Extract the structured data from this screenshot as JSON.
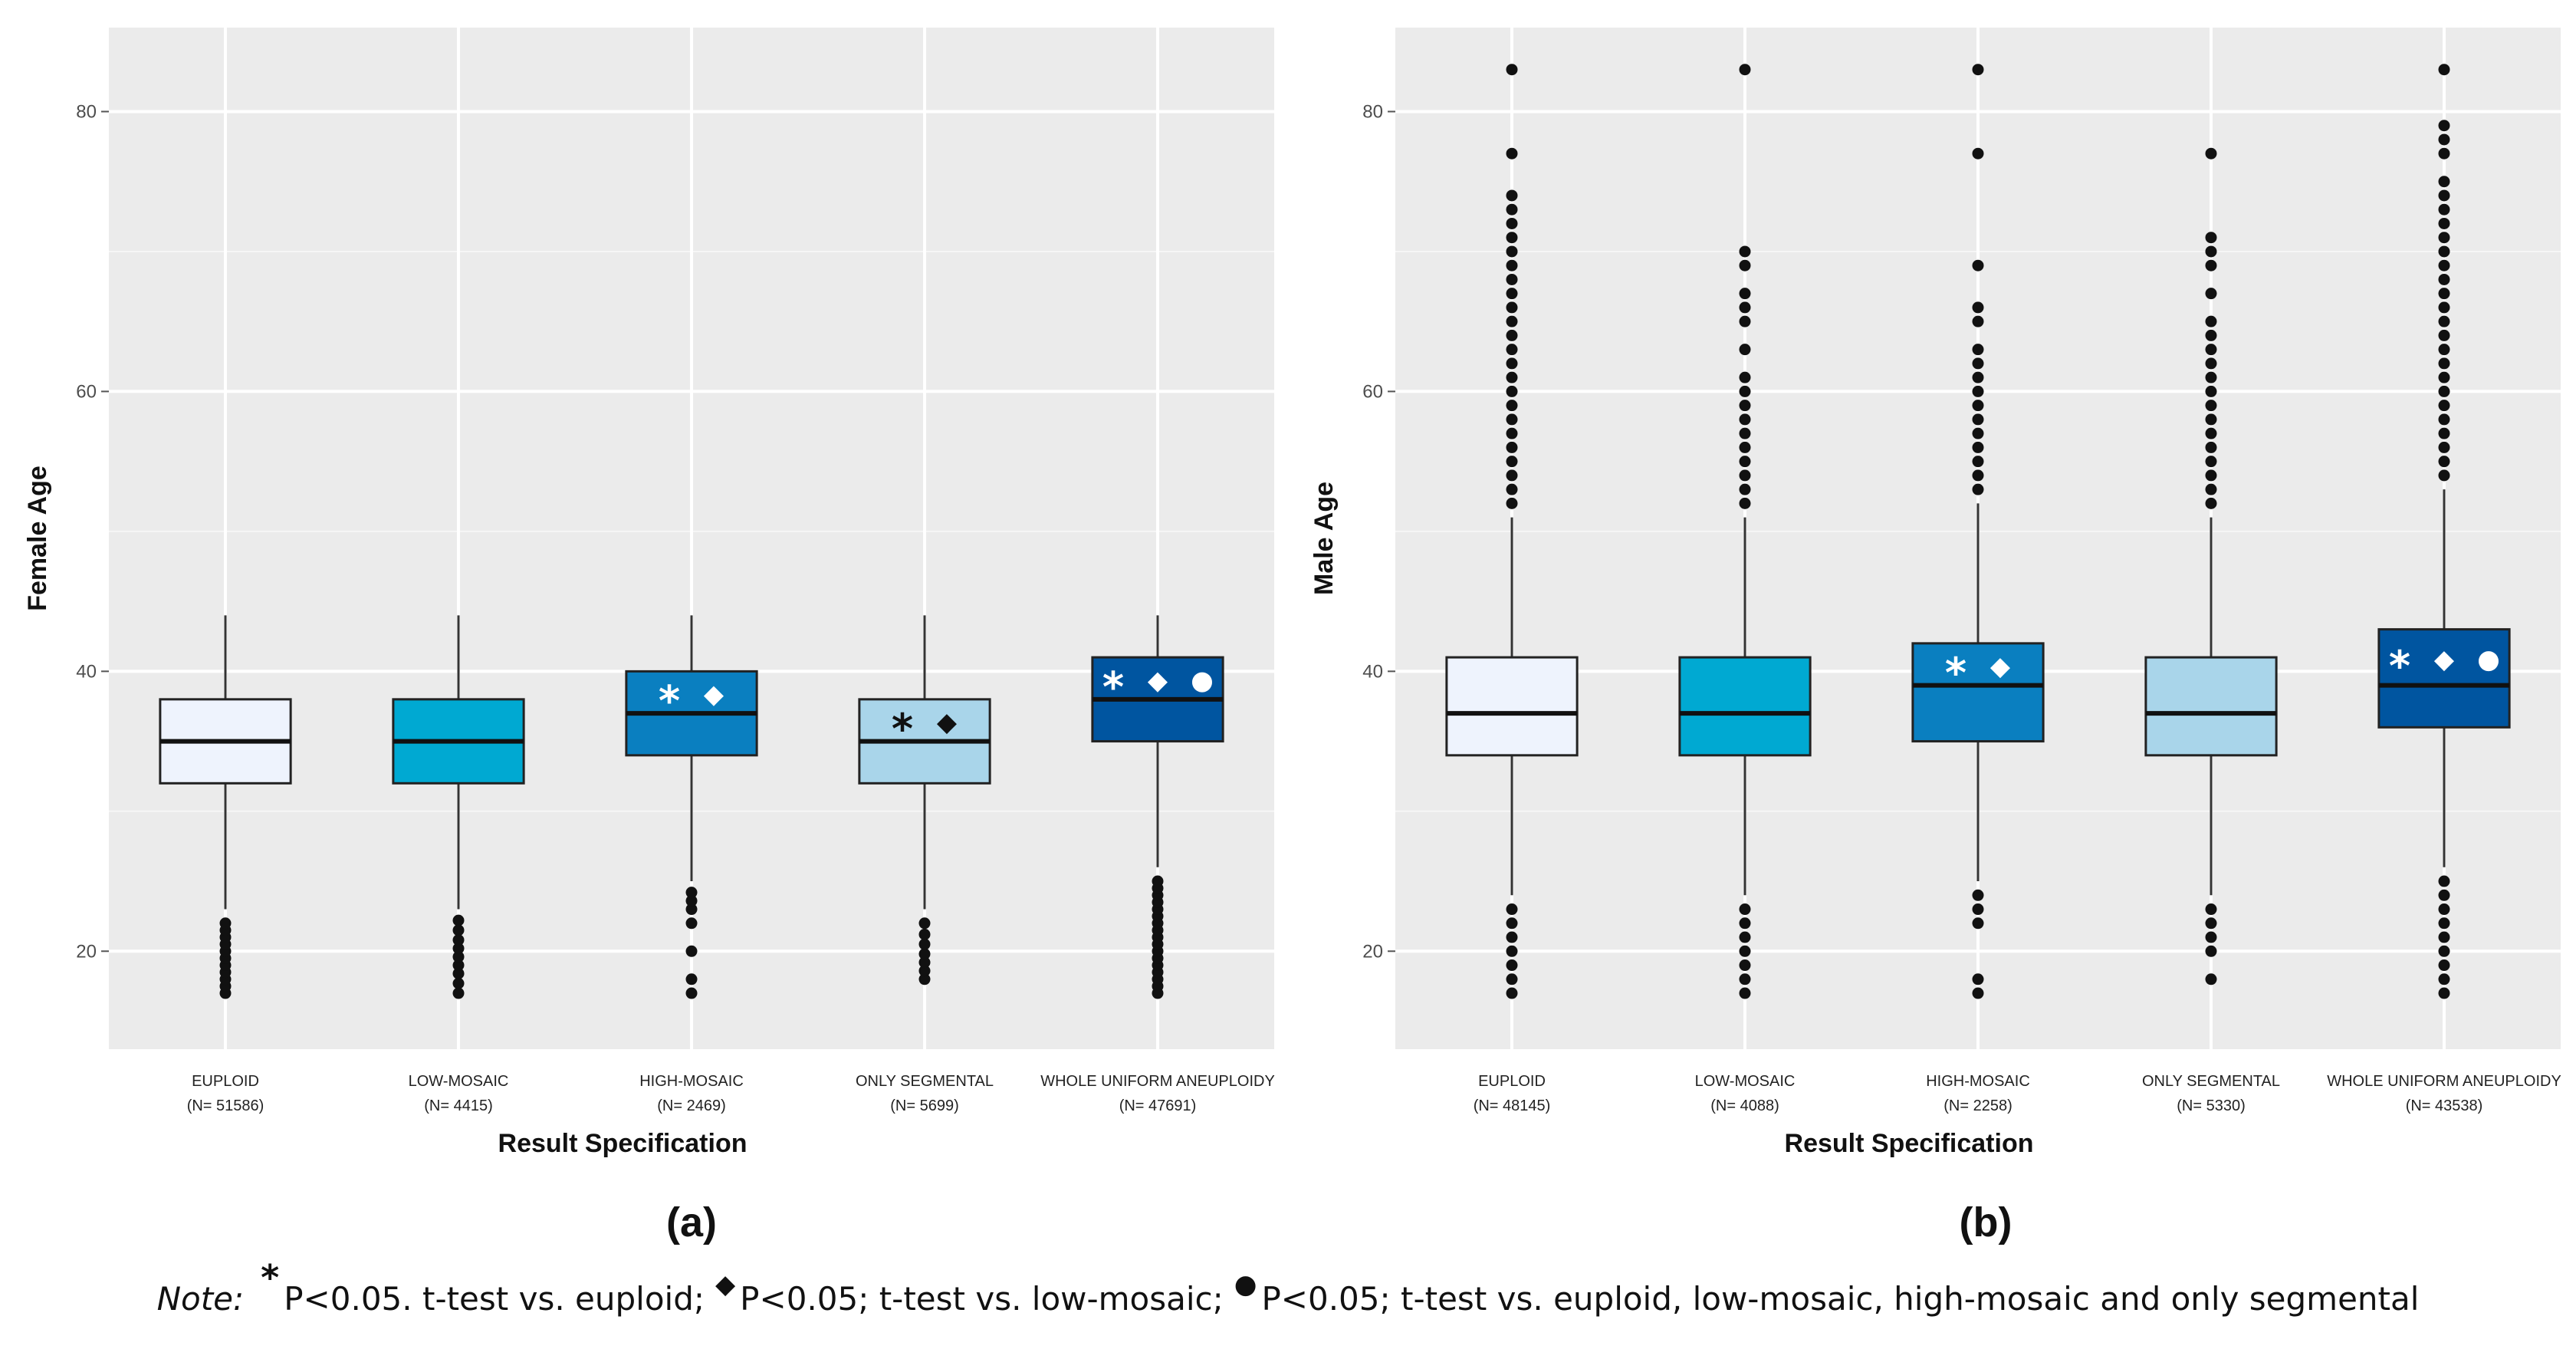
{
  "figure": {
    "panels": [
      {
        "label": "(a)"
      },
      {
        "label": "(b)"
      }
    ],
    "note": {
      "lead": "Note:",
      "items": [
        {
          "symbol": "*",
          "icon": "asterisk-icon",
          "text": "P<0.05. t-test vs. euploid;"
        },
        {
          "symbol": "◆",
          "icon": "diamond-icon",
          "text": "P<0.05; t-test vs. low-mosaic;"
        },
        {
          "symbol": "●",
          "icon": "circle-icon",
          "text": "P<0.05; t-test vs. euploid, low-mosaic, high-mosaic and only segmental"
        }
      ]
    }
  },
  "chart_data": [
    {
      "type": "boxplot",
      "panel": "(a)",
      "xlabel": "Result Specification",
      "ylabel": "Female Age",
      "ylim": [
        13,
        86
      ],
      "yticks": [
        20,
        40,
        60,
        80
      ],
      "grid": true,
      "categories": [
        {
          "name": "EUPLOID",
          "n_label": "(N= 51586)",
          "color": "#eef3fd",
          "q1": 32,
          "median": 35,
          "q3": 38,
          "whisker_low": 23,
          "whisker_high": 44,
          "outliers": [
            17,
            17.5,
            18,
            18.5,
            19,
            19.5,
            20,
            20.5,
            21,
            21.5,
            22
          ],
          "markers": [],
          "marker_color": "#111111"
        },
        {
          "name": "LOW-MOSAIC",
          "n_label": "(N= 4415)",
          "color": "#00a9d2",
          "q1": 32,
          "median": 35,
          "q3": 38,
          "whisker_low": 23,
          "whisker_high": 44,
          "outliers": [
            17,
            17.7,
            18.4,
            19,
            19.6,
            20.2,
            20.8,
            21.5,
            22.2
          ],
          "markers": [],
          "marker_color": "#111111"
        },
        {
          "name": "HIGH-MOSAIC",
          "n_label": "(N= 2469)",
          "color": "#0a7fc0",
          "q1": 34,
          "median": 37,
          "q3": 40,
          "whisker_low": 25,
          "whisker_high": 44,
          "outliers": [
            17,
            18,
            20,
            22,
            23,
            23.6,
            24.2
          ],
          "markers": [
            "*",
            "◆"
          ],
          "marker_color": "#ffffff"
        },
        {
          "name": "ONLY SEGMENTAL",
          "n_label": "(N= 5699)",
          "color": "#a9d5ea",
          "q1": 32,
          "median": 35,
          "q3": 38,
          "whisker_low": 23,
          "whisker_high": 44,
          "outliers": [
            18,
            18.6,
            19.2,
            19.8,
            20.5,
            21.2,
            22
          ],
          "markers": [
            "*",
            "◆"
          ],
          "marker_color": "#111111"
        },
        {
          "name": "WHOLE UNIFORM ANEUPLOIDY",
          "n_label": "(N= 47691)",
          "color": "#0055a0",
          "q1": 35,
          "median": 38,
          "q3": 41,
          "whisker_low": 26,
          "whisker_high": 44,
          "outliers": [
            17,
            17.5,
            18,
            18.5,
            19,
            19.5,
            20,
            20.5,
            21,
            21.5,
            22,
            22.5,
            23,
            23.5,
            24,
            24.5,
            25
          ],
          "markers": [
            "*",
            "◆",
            "●"
          ],
          "marker_color": "#ffffff"
        }
      ]
    },
    {
      "type": "boxplot",
      "panel": "(b)",
      "xlabel": "Result Specification",
      "ylabel": "Male Age",
      "ylim": [
        13,
        86
      ],
      "yticks": [
        20,
        40,
        60,
        80
      ],
      "grid": true,
      "categories": [
        {
          "name": "EUPLOID",
          "n_label": "(N= 48145)",
          "color": "#eef3fd",
          "q1": 34,
          "median": 37,
          "q3": 41,
          "whisker_low": 24,
          "whisker_high": 51,
          "outliers": [
            17,
            18,
            19,
            20,
            21,
            22,
            23,
            52,
            53,
            54,
            55,
            56,
            57,
            58,
            59,
            60,
            61,
            62,
            63,
            64,
            65,
            66,
            67,
            68,
            69,
            70,
            71,
            72,
            73,
            74,
            77,
            83
          ],
          "markers": [],
          "marker_color": "#111111"
        },
        {
          "name": "LOW-MOSAIC",
          "n_label": "(N= 4088)",
          "color": "#00a9d2",
          "q1": 34,
          "median": 37,
          "q3": 41,
          "whisker_low": 24,
          "whisker_high": 51,
          "outliers": [
            17,
            18,
            19,
            20,
            21,
            22,
            23,
            52,
            53,
            54,
            55,
            56,
            57,
            58,
            59,
            60,
            61,
            63,
            65,
            66,
            67,
            69,
            70,
            83
          ],
          "markers": [],
          "marker_color": "#111111"
        },
        {
          "name": "HIGH-MOSAIC",
          "n_label": "(N= 2258)",
          "color": "#0a7fc0",
          "q1": 35,
          "median": 39,
          "q3": 42,
          "whisker_low": 25,
          "whisker_high": 52,
          "outliers": [
            17,
            18,
            22,
            23,
            24,
            53,
            54,
            55,
            56,
            57,
            58,
            59,
            60,
            61,
            62,
            63,
            65,
            66,
            69,
            77,
            83
          ],
          "markers": [
            "*",
            "◆"
          ],
          "marker_color": "#ffffff"
        },
        {
          "name": "ONLY SEGMENTAL",
          "n_label": "(N= 5330)",
          "color": "#a9d5ea",
          "q1": 34,
          "median": 37,
          "q3": 41,
          "whisker_low": 24,
          "whisker_high": 51,
          "outliers": [
            18,
            20,
            21,
            22,
            23,
            52,
            53,
            54,
            55,
            56,
            57,
            58,
            59,
            60,
            61,
            62,
            63,
            64,
            65,
            67,
            69,
            70,
            71,
            77
          ],
          "markers": [],
          "marker_color": "#111111"
        },
        {
          "name": "WHOLE UNIFORM ANEUPLOIDY",
          "n_label": "(N= 43538)",
          "color": "#0055a0",
          "q1": 36,
          "median": 39,
          "q3": 43,
          "whisker_low": 26,
          "whisker_high": 53,
          "outliers": [
            17,
            18,
            19,
            20,
            21,
            22,
            23,
            24,
            25,
            54,
            55,
            56,
            57,
            58,
            59,
            60,
            61,
            62,
            63,
            64,
            65,
            66,
            67,
            68,
            69,
            70,
            71,
            72,
            73,
            74,
            75,
            77,
            78,
            79,
            83
          ],
          "markers": [
            "*",
            "◆",
            "●"
          ],
          "marker_color": "#ffffff"
        }
      ]
    }
  ]
}
